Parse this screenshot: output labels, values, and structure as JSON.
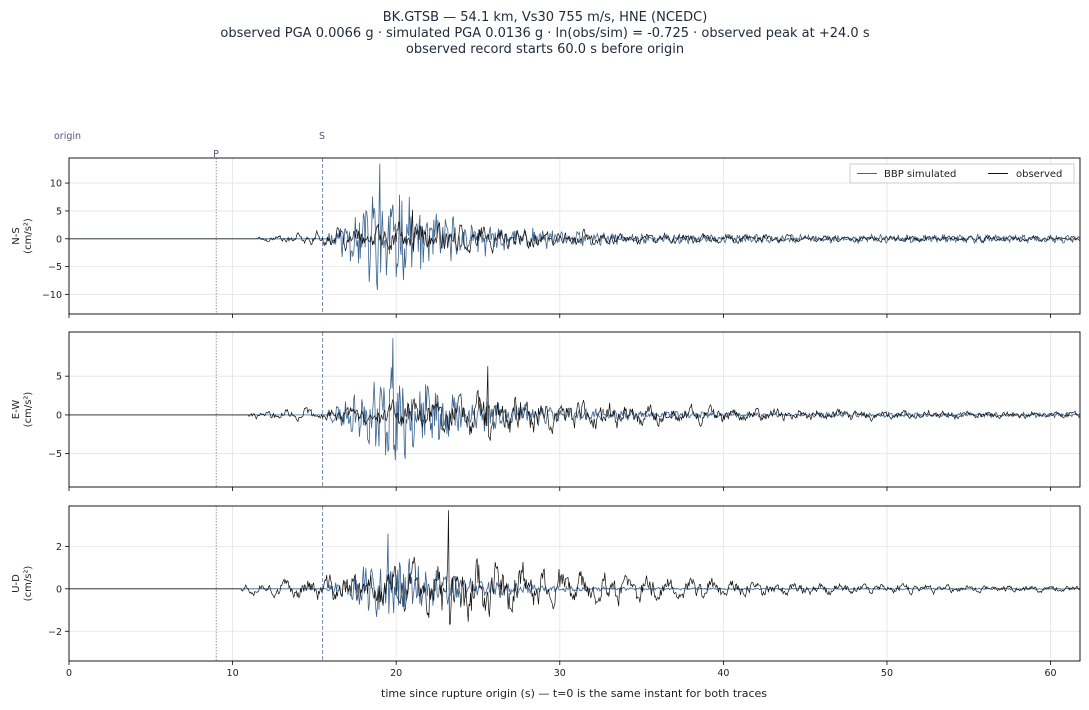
{
  "title": {
    "line1": "BK.GTSB  —  54.1 km, Vs30 755 m/s, HNE (NCEDC)",
    "line2": "observed PGA 0.0066 g   ·   simulated PGA 0.0136 g   ·   ln(obs/sim) = -0.725   ·   observed peak at +24.0 s",
    "line3": "observed record starts 60.0 s before origin"
  },
  "colors": {
    "simulated": "#3d6590",
    "observed": "#111111",
    "grid": "#e3e3e3",
    "p_marker": "#8a8a9a",
    "s_marker": "#7a8fc0"
  },
  "chart_data": {
    "type": "line",
    "xlabel": "time since rupture origin (s)   —   t=0 is the same instant for both traces",
    "xlim": [
      0,
      61.8
    ],
    "x_ticks": [
      0,
      10,
      20,
      30,
      40,
      50,
      60
    ],
    "grid": true,
    "legend": {
      "placement": "top-right",
      "entries": [
        "BBP simulated",
        "observed"
      ]
    },
    "markers": {
      "origin": {
        "label": "origin",
        "t": 0
      },
      "p": {
        "label": "P",
        "t": 9.0
      },
      "s": {
        "label": "S",
        "t": 15.5
      }
    },
    "panels": [
      {
        "ylabel_top": "N-S",
        "ylabel_bottom": "(cm/s²)",
        "ylim": [
          -13.5,
          14.5
        ],
        "y_ticks": [
          -10,
          -5,
          0,
          5,
          10
        ],
        "series": [
          {
            "name": "BBP simulated",
            "start": 15.8,
            "peak_t": 19.0,
            "peak": 13.5,
            "amp": 6.8,
            "decay": 4.2,
            "rise": 1.3,
            "freq": 5.5,
            "tail": 0.3,
            "seed": 11
          },
          {
            "name": "observed",
            "start": 11.5,
            "peak_t": 21.0,
            "peak": 5.2,
            "amp": 2.6,
            "decay": 8.0,
            "rise": 5.0,
            "freq": 2.4,
            "tail": 0.6,
            "seed": 17
          }
        ]
      },
      {
        "ylabel_top": "E-W",
        "ylabel_bottom": "(cm/s²)",
        "ylim": [
          -9.3,
          10.7
        ],
        "y_ticks": [
          -5,
          0,
          5
        ],
        "series": [
          {
            "name": "BBP simulated",
            "start": 15.8,
            "peak_t": 19.8,
            "peak": 9.9,
            "amp": 4.4,
            "decay": 4.6,
            "rise": 1.5,
            "freq": 5.5,
            "tail": 0.2,
            "seed": 23
          },
          {
            "name": "observed",
            "start": 11.0,
            "peak_t": 25.6,
            "peak": 6.3,
            "amp": 2.5,
            "decay": 9.0,
            "rise": 6.0,
            "freq": 2.3,
            "tail": 0.55,
            "seed": 29
          }
        ]
      },
      {
        "ylabel_top": "U-D",
        "ylabel_bottom": "(cm/s²)",
        "ylim": [
          -3.4,
          3.9
        ],
        "y_ticks": [
          -2,
          0,
          2
        ],
        "series": [
          {
            "name": "BBP simulated",
            "start": 15.8,
            "peak_t": 19.5,
            "peak": 2.6,
            "amp": 1.2,
            "decay": 4.0,
            "rise": 1.4,
            "freq": 5.5,
            "tail": 0.08,
            "seed": 31
          },
          {
            "name": "observed",
            "start": 10.5,
            "peak_t": 23.2,
            "peak": 3.7,
            "amp": 1.3,
            "decay": 10.0,
            "rise": 6.0,
            "freq": 2.3,
            "tail": 0.3,
            "seed": 37
          }
        ]
      }
    ]
  }
}
